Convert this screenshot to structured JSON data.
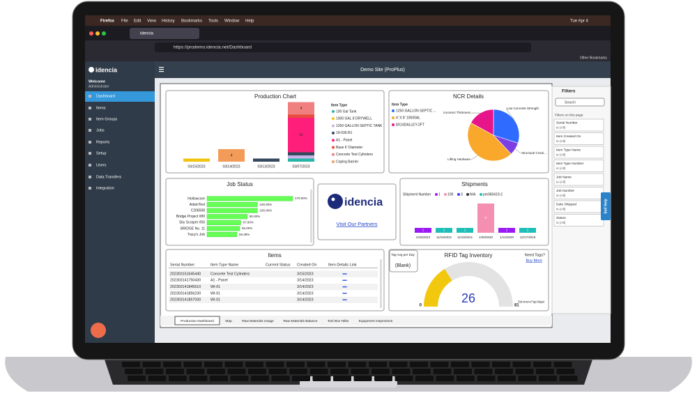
{
  "menubar": {
    "app": "Firefox",
    "menus": [
      "File",
      "Edit",
      "View",
      "History",
      "Bookmarks",
      "Tools",
      "Window",
      "Help"
    ],
    "clock": "Tue Apr 4"
  },
  "browser": {
    "tab": "idencia",
    "url": "https://prodemo.idencia.net/Dashboard",
    "bookmarks": "Other Bookmarks"
  },
  "sidebar": {
    "logo": "idencia",
    "welcome": "Welcome",
    "role": "Administrator",
    "menu": [
      "Dashboard",
      "Items",
      "Item Groups",
      "Jobs",
      "Reports",
      "Setup",
      "Users",
      "Data Transfers",
      "Integration"
    ]
  },
  "header": {
    "title": "Demo Site (ProPlus)"
  },
  "production_chart": {
    "type": "bar",
    "stacked": true,
    "title": "Production Chart",
    "legend_title": "Item Type",
    "categories": [
      "03/15/2023",
      "03/14/2023",
      "03/13/2023",
      "03/07/2023"
    ],
    "series": [
      {
        "name": "100 Gal Tank",
        "color": "#26b5a5",
        "values": [
          null,
          null,
          null,
          1
        ]
      },
      {
        "name": "1000 GAL 8 DRYWELL",
        "color": "#f1c40f",
        "values": [
          1,
          null,
          null,
          null
        ]
      },
      {
        "name": "1250 GALLON SEPTIC TANK",
        "color": "#c9b3e6",
        "values": [
          null,
          null,
          null,
          1
        ]
      },
      {
        "name": "19-030.R1",
        "color": "#34495e",
        "values": [
          null,
          null,
          1,
          1
        ]
      },
      {
        "name": "A1 - Panel",
        "color": "#ff1f7a",
        "values": [
          null,
          null,
          null,
          11
        ]
      },
      {
        "name": "Base 6' Diameter",
        "color": "#e74c3c",
        "values": [
          null,
          null,
          null,
          1
        ]
      },
      {
        "name": "Concrete Test Cylinders",
        "color": "#f08080",
        "values": [
          null,
          null,
          null,
          4
        ]
      },
      {
        "name": "Coping Barrier",
        "color": "#f39c5a",
        "values": [
          null,
          4,
          null,
          null
        ]
      }
    ]
  },
  "ncr_details": {
    "type": "pie",
    "title": "NCR Details",
    "legend_title": "Item Type",
    "legend": [
      {
        "name": "1250 GALLON SEPTIC ...",
        "color": "#2f6bff"
      },
      {
        "name": "4' X 8' 10500AL",
        "color": "#f9a82b"
      },
      {
        "name": "8X14DALLEY-2FT",
        "color": "#e6168a"
      }
    ],
    "categories": [
      "Low Concrete Strength",
      "Structural Crack...",
      "Lifting Hardware",
      "Incorrect Thickness"
    ],
    "values": [
      30,
      8,
      45,
      17
    ],
    "colors": [
      "#2f6bff",
      "#7b3fe4",
      "#f9a82b",
      "#e6168a"
    ]
  },
  "job_status": {
    "type": "bar",
    "orientation": "horizontal",
    "title": "Job Status",
    "categories": [
      "Hollowcore",
      "AdamTest",
      "C206598",
      "Bridge Project #89",
      "Sky Scraper #56",
      "BRIDGE No. 11",
      "Tracy's Job"
    ],
    "values": [
      170,
      100,
      100,
      80,
      67,
      65,
      59.38
    ],
    "value_labels": [
      "170.00%",
      "100.00%",
      "100.00%",
      "80.00%",
      "67.00%",
      "65.00%",
      "59.38%"
    ],
    "color": "#66ff55"
  },
  "partners": {
    "logo": "idencia",
    "link": "Visit Our Partners"
  },
  "shipments": {
    "type": "bar",
    "title": "Shipments",
    "legend_title": "Shipment Number",
    "categories": [
      "2/16/2023",
      "11/16/2021",
      "11/15/2021",
      "1/30/2020",
      "1/14/2020",
      "12/17/2019"
    ],
    "series": [
      {
        "name": "1",
        "color": "#9b19f5",
        "values": [
          1,
          null,
          null,
          null,
          1,
          null
        ]
      },
      {
        "name": "109",
        "color": "#f48fb1",
        "values": [
          null,
          null,
          null,
          6,
          null,
          null
        ]
      },
      {
        "name": "3",
        "color": "#3b3bff",
        "values": [
          null,
          null,
          null,
          null,
          null,
          null
        ]
      },
      {
        "name": "N/A",
        "color": "#333333",
        "values": [
          null,
          null,
          null,
          null,
          null,
          null
        ]
      },
      {
        "name": "pm060419-2",
        "color": "#1fbfb8",
        "values": [
          null,
          1,
          1,
          null,
          null,
          1
        ]
      }
    ]
  },
  "items": {
    "title": "Items",
    "columns": [
      "Serial Number",
      "Item Type Name",
      "Current Status",
      "Created On",
      "Item Details Link"
    ],
    "rows": [
      [
        "202303151645440",
        "Concrete Test Cylinders",
        "",
        "3/15/2023"
      ],
      [
        "202303141750430",
        "A1 - Panel",
        "",
        "3/14/2023"
      ],
      [
        "202303141845510",
        "WI-01",
        "",
        "3/14/2023"
      ],
      [
        "202303141856230",
        "WI-01",
        "",
        "3/14/2023"
      ],
      [
        "202303141857030",
        "WI-01",
        "",
        "3/14/2023"
      ]
    ]
  },
  "tag_avg": {
    "label": "Tag Avg per Day",
    "value": "(Blank)"
  },
  "rfid": {
    "type": "gauge",
    "title": "RFID Tag Inventory",
    "need": "Need Tags?",
    "buy": "Buy More",
    "value": 26,
    "min": 0,
    "max": 81,
    "caption": "Total Amount of Tags Shipped"
  },
  "filters": {
    "title": "Filters",
    "search": "Search",
    "section": "Filters on this page",
    "items": [
      {
        "name": "Serial Number",
        "value": "is (All)"
      },
      {
        "name": "Item Created On",
        "value": "is (All)"
      },
      {
        "name": "Item Type Name",
        "value": "is (All)"
      },
      {
        "name": "Item Type Number",
        "value": "is (All)"
      },
      {
        "name": "Job Name",
        "value": "is (All)"
      },
      {
        "name": "Job Number",
        "value": "is (All)"
      },
      {
        "name": "Date Shipped",
        "value": "is (All)"
      },
      {
        "name": "Status",
        "value": "is (All)"
      }
    ],
    "help": "Self Help"
  },
  "tabs": [
    "Production Dashboard",
    "Map",
    "Raw Materials Usage",
    "Raw Materials Balance",
    "Tool Box Talks",
    "Equipment Inspections"
  ]
}
